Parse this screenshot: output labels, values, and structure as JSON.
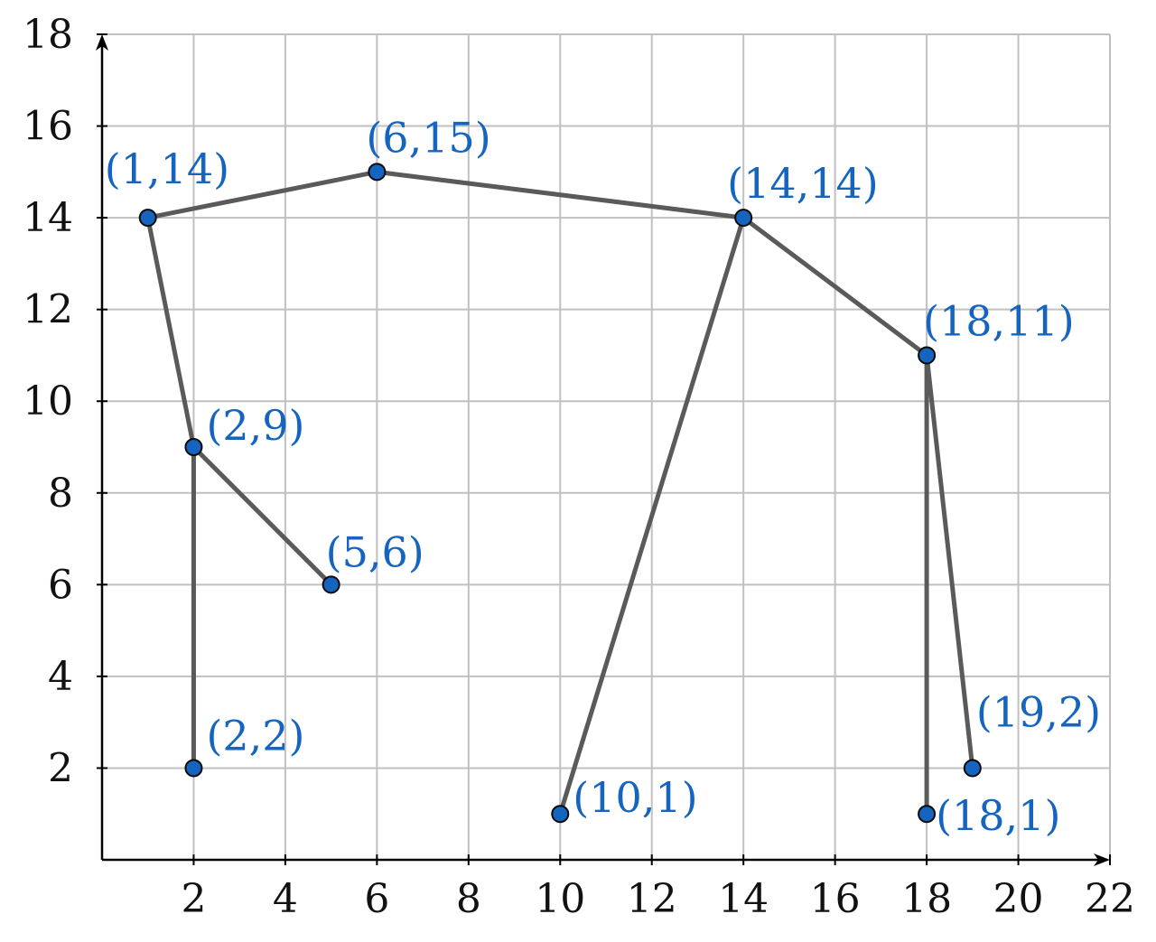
{
  "chart_data": {
    "type": "scatter",
    "title": "",
    "xlabel": "",
    "ylabel": "",
    "xlim": [
      0,
      22
    ],
    "ylim": [
      0,
      18
    ],
    "x_ticks": [
      2,
      4,
      6,
      8,
      10,
      12,
      14,
      16,
      18,
      20,
      22
    ],
    "y_ticks": [
      2,
      4,
      6,
      8,
      10,
      12,
      14,
      16,
      18
    ],
    "grid": true,
    "points": [
      {
        "x": 1,
        "y": 14,
        "label": "(1,14)"
      },
      {
        "x": 6,
        "y": 15,
        "label": "(6,15)"
      },
      {
        "x": 14,
        "y": 14,
        "label": "(14,14)"
      },
      {
        "x": 18,
        "y": 11,
        "label": "(18,11)"
      },
      {
        "x": 2,
        "y": 9,
        "label": "(2,9)"
      },
      {
        "x": 5,
        "y": 6,
        "label": "(5,6)"
      },
      {
        "x": 2,
        "y": 2,
        "label": "(2,2)"
      },
      {
        "x": 10,
        "y": 1,
        "label": "(10,1)"
      },
      {
        "x": 19,
        "y": 2,
        "label": "(19,2)"
      },
      {
        "x": 18,
        "y": 1,
        "label": "(18,1)"
      }
    ],
    "edges": [
      [
        [
          1,
          14
        ],
        [
          6,
          15
        ]
      ],
      [
        [
          6,
          15
        ],
        [
          14,
          14
        ]
      ],
      [
        [
          14,
          14
        ],
        [
          18,
          11
        ]
      ],
      [
        [
          1,
          14
        ],
        [
          2,
          9
        ]
      ],
      [
        [
          2,
          9
        ],
        [
          5,
          6
        ]
      ],
      [
        [
          2,
          9
        ],
        [
          2,
          2
        ]
      ],
      [
        [
          14,
          14
        ],
        [
          10,
          1
        ]
      ],
      [
        [
          18,
          11
        ],
        [
          18,
          1
        ]
      ],
      [
        [
          18,
          11
        ],
        [
          19,
          2
        ]
      ]
    ]
  },
  "colors": {
    "grid": "#c0c0c0",
    "edge": "#5a5a5a",
    "point_fill": "#1565c0",
    "point_stroke": "#0a0a0a",
    "label": "#1565c0",
    "axis": "#000000"
  }
}
